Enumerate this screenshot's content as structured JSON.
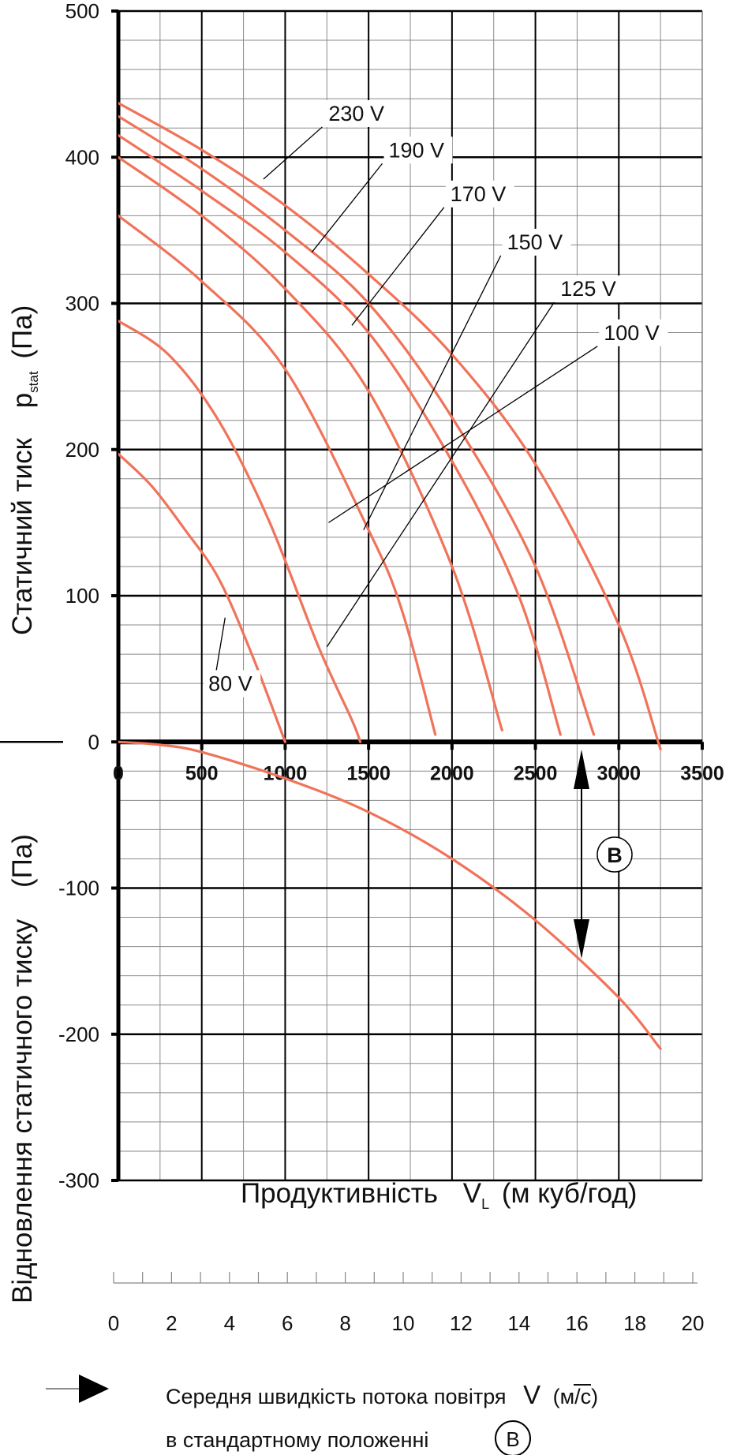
{
  "chart_data": {
    "type": "line",
    "xlabel_prefix": "Продуктивність",
    "xlabel_symbol": "V",
    "xlabel_sub": "L",
    "xlabel_units": "(м куб/год)",
    "ylabel_top": "Статичний тиск",
    "ylabel_top_symbol": "p",
    "ylabel_top_sub": "stat",
    "ylabel_top_units": "(Па)",
    "ylabel_bottom": "Відновлення статичного тиску",
    "ylabel_bottom_units": "(Па)",
    "xlim": [
      0,
      3500
    ],
    "ylim": [
      -300,
      500
    ],
    "x_ticks": [
      0,
      500,
      1000,
      1500,
      2000,
      2500,
      3000,
      3500
    ],
    "x_tick_labels": [
      "0",
      "500",
      "1000",
      "1500",
      "2000",
      "2500",
      "3000",
      "3500"
    ],
    "y_ticks": [
      -300,
      -200,
      -100,
      0,
      100,
      200,
      300,
      400,
      500
    ],
    "y_tick_labels": [
      "-300",
      "-200",
      "-100",
      "0",
      "100",
      "200",
      "300",
      "400",
      "500"
    ],
    "series": [
      {
        "name": "230 V",
        "label": "230 V",
        "x": [
          0,
          500,
          1000,
          1500,
          2000,
          2500,
          3000,
          3250
        ],
        "y": [
          437,
          405,
          367,
          320,
          265,
          190,
          80,
          -5
        ]
      },
      {
        "name": "190 V",
        "label": "190 V",
        "x": [
          0,
          500,
          1000,
          1500,
          2000,
          2500,
          2850
        ],
        "y": [
          428,
          392,
          350,
          300,
          222,
          120,
          5
        ]
      },
      {
        "name": "170 V",
        "label": "170 V",
        "x": [
          0,
          500,
          1000,
          1500,
          2000,
          2400,
          2650
        ],
        "y": [
          415,
          377,
          335,
          280,
          192,
          100,
          5
        ]
      },
      {
        "name": "150 V",
        "label": "150 V",
        "x": [
          0,
          500,
          1000,
          1500,
          2000,
          2300
        ],
        "y": [
          400,
          360,
          310,
          240,
          120,
          8
        ]
      },
      {
        "name": "125 V",
        "label": "125 V",
        "x": [
          0,
          500,
          1000,
          1500,
          1700,
          1900
        ],
        "y": [
          360,
          315,
          255,
          145,
          90,
          5
        ]
      },
      {
        "name": "100 V",
        "label": "100 V",
        "x": [
          0,
          300,
          600,
          900,
          1200,
          1400,
          1450
        ],
        "y": [
          288,
          265,
          220,
          152,
          65,
          15,
          0
        ]
      },
      {
        "name": "80 V",
        "label": "80 V",
        "x": [
          0,
          200,
          400,
          600,
          800,
          1000
        ],
        "y": [
          197,
          175,
          145,
          112,
          60,
          0
        ]
      },
      {
        "name": "Відновлення статичного тиску",
        "x": [
          0,
          250,
          500,
          1000,
          1500,
          2000,
          2500,
          3000,
          3250
        ],
        "y": [
          0,
          -2,
          -7,
          -25,
          -48,
          -80,
          -122,
          -175,
          -210
        ]
      }
    ],
    "annotation_B": "B",
    "velocity_scale": {
      "ticks": [
        0,
        2,
        4,
        6,
        8,
        10,
        12,
        14,
        16,
        18,
        20
      ],
      "tick_labels": [
        "0",
        "2",
        "4",
        "6",
        "8",
        "10",
        "12",
        "14",
        "16",
        "18",
        "20"
      ],
      "max_flow_at_20": 3500
    }
  },
  "legend": {
    "line1": "Середня швидкість потока повітря",
    "velocity_symbol": "V",
    "velocity_units": "(м/с)",
    "line2": "в стандартному положенні",
    "marker": "B"
  }
}
